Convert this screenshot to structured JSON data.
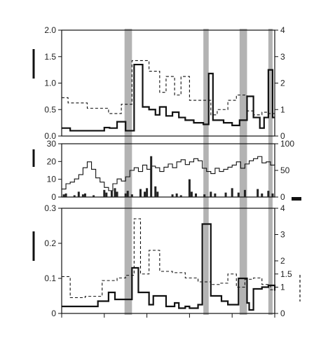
{
  "chart_data": [
    {
      "type": "line",
      "panel": "top",
      "ylim_left": [
        0,
        2.0
      ],
      "ylim_right": [
        0,
        4
      ],
      "yticks_left": [
        "0.0",
        "0.5",
        "1.0",
        "1.5",
        "2.0"
      ],
      "yticks_right": [
        "0",
        "1",
        "2",
        "3",
        "4"
      ],
      "xlim": [
        0,
        1
      ],
      "grid": false,
      "shaded_bands": [
        [
          0.295,
          0.33
        ],
        [
          0.665,
          0.69
        ],
        [
          0.835,
          0.87
        ],
        [
          0.97,
          0.99
        ]
      ],
      "series": [
        {
          "style": "solid-step",
          "axis": "left",
          "x": [
            0,
            0.04,
            0.16,
            0.2,
            0.225,
            0.26,
            0.3,
            0.34,
            0.38,
            0.41,
            0.44,
            0.46,
            0.49,
            0.52,
            0.55,
            0.58,
            0.62,
            0.665,
            0.69,
            0.71,
            0.76,
            0.8,
            0.835,
            0.87,
            0.9,
            0.93,
            0.95,
            0.97,
            0.99,
            1.0
          ],
          "y": [
            0.15,
            0.1,
            0.1,
            0.16,
            0.15,
            0.27,
            0.1,
            1.35,
            0.55,
            0.5,
            0.4,
            0.55,
            0.38,
            0.45,
            0.35,
            0.3,
            0.25,
            0.22,
            1.18,
            0.3,
            0.25,
            0.2,
            0.3,
            0.75,
            0.35,
            0.15,
            0.35,
            1.25,
            0.35,
            0.35
          ]
        },
        {
          "style": "dashed-step",
          "axis": "right",
          "x": [
            0,
            0.03,
            0.12,
            0.22,
            0.28,
            0.33,
            0.41,
            0.46,
            0.49,
            0.53,
            0.56,
            0.6,
            0.64,
            0.7,
            0.73,
            0.78,
            0.82,
            0.87,
            0.9,
            0.94,
            0.97,
            1.0
          ],
          "y": [
            1.45,
            1.25,
            1.05,
            0.85,
            1.2,
            2.85,
            2.45,
            1.65,
            2.25,
            1.55,
            2.25,
            1.35,
            1.35,
            0.8,
            1.0,
            1.35,
            1.55,
            0.95,
            0.8,
            0.9,
            0.85,
            0.85
          ]
        }
      ]
    },
    {
      "type": "line",
      "panel": "middle",
      "ylim_left": [
        0,
        30
      ],
      "ylim_right": [
        0,
        100
      ],
      "yticks_left": [
        "0",
        "10",
        "20",
        "30"
      ],
      "yticks_right": [
        "0",
        "50",
        "100"
      ],
      "xlim": [
        0,
        1
      ],
      "grid": false,
      "series": [
        {
          "style": "thin-step",
          "axis": "right",
          "x": [
            0,
            0.02,
            0.04,
            0.06,
            0.08,
            0.1,
            0.12,
            0.14,
            0.16,
            0.18,
            0.2,
            0.22,
            0.24,
            0.26,
            0.28,
            0.3,
            0.32,
            0.34,
            0.36,
            0.38,
            0.4,
            0.42,
            0.44,
            0.46,
            0.48,
            0.5,
            0.52,
            0.54,
            0.56,
            0.58,
            0.6,
            0.62,
            0.64,
            0.66,
            0.68,
            0.7,
            0.72,
            0.74,
            0.76,
            0.78,
            0.8,
            0.82,
            0.84,
            0.86,
            0.88,
            0.9,
            0.92,
            0.94,
            0.96,
            0.98,
            1.0
          ],
          "y": [
            15,
            25,
            28,
            34,
            42,
            55,
            66,
            52,
            36,
            28,
            18,
            12,
            25,
            34,
            30,
            38,
            50,
            55,
            48,
            60,
            52,
            58,
            55,
            48,
            56,
            62,
            55,
            66,
            70,
            61,
            66,
            72,
            68,
            54,
            48,
            44,
            54,
            48,
            52,
            56,
            60,
            66,
            54,
            62,
            68,
            72,
            76,
            64,
            66,
            60,
            62
          ]
        },
        {
          "style": "bars",
          "axis": "left",
          "x": [
            0.01,
            0.02,
            0.06,
            0.08,
            0.1,
            0.11,
            0.15,
            0.2,
            0.21,
            0.235,
            0.25,
            0.26,
            0.3,
            0.31,
            0.33,
            0.37,
            0.39,
            0.4,
            0.42,
            0.44,
            0.45,
            0.52,
            0.54,
            0.56,
            0.6,
            0.61,
            0.63,
            0.67,
            0.7,
            0.72,
            0.77,
            0.8,
            0.83,
            0.86,
            0.92,
            0.94,
            0.97,
            0.99
          ],
          "y": [
            1.5,
            2,
            1,
            3,
            1.5,
            2,
            1,
            4,
            2.5,
            3.5,
            5,
            3,
            2,
            3.5,
            1.5,
            4.5,
            3,
            5,
            23,
            6,
            3,
            1.5,
            2,
            1,
            10,
            3,
            2,
            1.5,
            3,
            2,
            2.5,
            5,
            2.5,
            4,
            4.5,
            2,
            3.5,
            2
          ]
        }
      ]
    },
    {
      "type": "line",
      "panel": "bottom",
      "ylim_left": [
        0,
        0.3
      ],
      "ylim_right": [
        0,
        4
      ],
      "yticks_left": [
        "0",
        "0.1",
        "0.2",
        "0.3"
      ],
      "yticks_right": [
        "0",
        "1",
        "1.5",
        "2",
        "3",
        "4"
      ],
      "xlim": [
        0,
        1
      ],
      "grid": false,
      "series": [
        {
          "style": "solid-step",
          "axis": "left",
          "x": [
            0,
            0.17,
            0.22,
            0.25,
            0.33,
            0.36,
            0.41,
            0.43,
            0.49,
            0.53,
            0.55,
            0.58,
            0.6,
            0.64,
            0.66,
            0.7,
            0.75,
            0.78,
            0.83,
            0.87,
            0.88,
            0.9,
            0.94,
            0.97,
            1.0
          ],
          "y": [
            0.02,
            0.035,
            0.06,
            0.04,
            0.13,
            0.06,
            0.025,
            0.05,
            0.02,
            0.03,
            0.015,
            0.02,
            0.015,
            0.025,
            0.255,
            0.05,
            0.035,
            0.025,
            0.1,
            0.03,
            0.01,
            0.07,
            0.075,
            0.08,
            0.065
          ]
        },
        {
          "style": "dashed-step",
          "axis": "right",
          "x": [
            0,
            0.04,
            0.11,
            0.19,
            0.26,
            0.3,
            0.34,
            0.37,
            0.41,
            0.46,
            0.49,
            0.52,
            0.58,
            0.64,
            0.7,
            0.74,
            0.78,
            0.82,
            0.86,
            0.9,
            0.94,
            0.98,
            1.0
          ],
          "y": [
            1.4,
            0.6,
            0.65,
            1.25,
            1.35,
            1.45,
            3.6,
            1.5,
            2.4,
            1.6,
            1.6,
            1.55,
            1.35,
            1.2,
            1.1,
            1.15,
            1.5,
            1.0,
            1.3,
            1.35,
            1.1,
            0.9,
            0.9
          ]
        }
      ]
    }
  ]
}
